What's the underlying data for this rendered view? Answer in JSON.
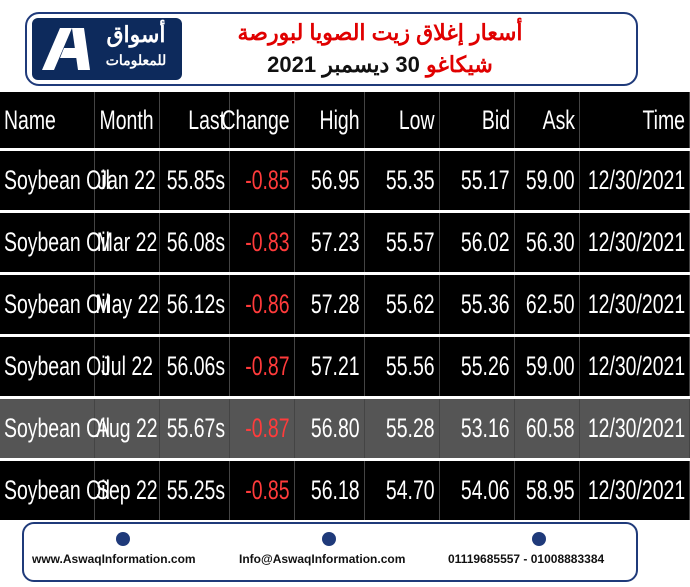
{
  "header": {
    "logo_name": "أسواق",
    "logo_sub": "للمعلومات",
    "title_line1": "أسعار إغلاق زيت الصويا لبورصة",
    "title_line2_red": "شيكاغو",
    "title_line2_black": "30 ديسمبر 2021"
  },
  "table": {
    "columns": [
      "Name",
      "Month",
      "Last",
      "Change",
      "High",
      "Low",
      "Bid",
      "Ask",
      "Time"
    ],
    "rows": [
      [
        "Soybean Oil",
        "Jan 22",
        "55.85s",
        "-0.85",
        "56.95",
        "55.35",
        "55.17",
        "59.00",
        "12/30/2021"
      ],
      [
        "Soybean Oil",
        "Mar 22",
        "56.08s",
        "-0.83",
        "57.23",
        "55.57",
        "56.02",
        "56.30",
        "12/30/2021"
      ],
      [
        "Soybean Oil",
        "May 22",
        "56.12s",
        "-0.86",
        "57.28",
        "55.62",
        "55.36",
        "62.50",
        "12/30/2021"
      ],
      [
        "Soybean Oil",
        "Jul 22",
        "56.06s",
        "-0.87",
        "57.21",
        "55.56",
        "55.26",
        "59.00",
        "12/30/2021"
      ],
      [
        "Soybean Oil",
        "Aug 22",
        "55.67s",
        "-0.87",
        "56.80",
        "55.28",
        "53.16",
        "60.58",
        "12/30/2021"
      ],
      [
        "Soybean Oil",
        "Sep 22",
        "55.25s",
        "-0.85",
        "56.18",
        "54.70",
        "54.06",
        "58.95",
        "12/30/2021"
      ]
    ]
  },
  "footer": {
    "website": "www.AswaqInformation.com",
    "email": "Info@AswaqInformation.com",
    "phone": "01119685557 - 01008883384"
  }
}
